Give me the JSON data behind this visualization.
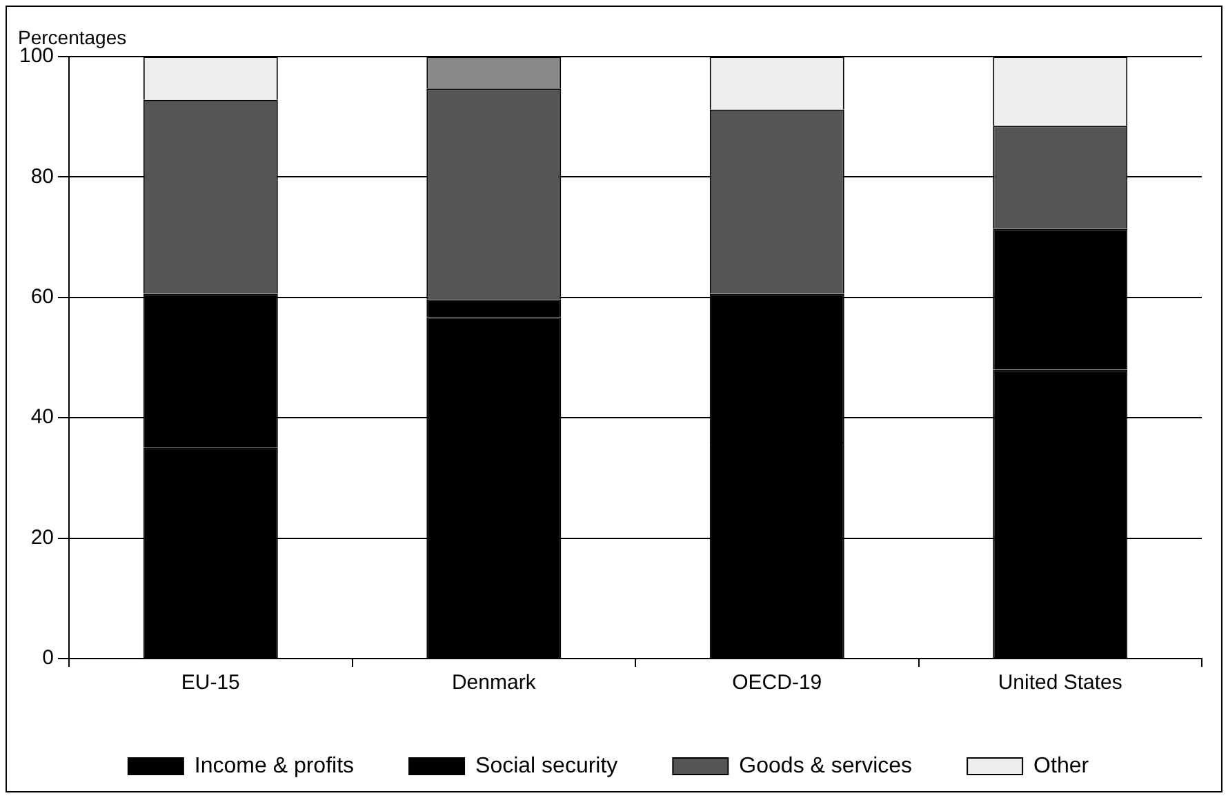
{
  "chart_data": {
    "type": "bar",
    "stacked": true,
    "ylabel": "Percentages",
    "categories": [
      "EU-15",
      "Denmark",
      "OECD-19",
      "United States"
    ],
    "series": [
      {
        "name": "Income & profits",
        "color": "#000000",
        "values": [
          35,
          56.7,
          36,
          48
        ]
      },
      {
        "name": "Social security",
        "color": "#000000",
        "values": [
          25.6,
          3,
          24.6,
          23.4
        ]
      },
      {
        "name": "Goods & services",
        "color": "#555555",
        "values": [
          32.2,
          35,
          30.6,
          17.1
        ]
      },
      {
        "name": "Other",
        "color": "#eeeeee",
        "colors": [
          "#eeeeee",
          "#888888",
          "#eeeeee",
          "#eeeeee"
        ],
        "values": [
          7.2,
          5.3,
          8.8,
          11.5
        ]
      }
    ],
    "ylim": [
      0,
      100
    ],
    "yticks": [
      0,
      20,
      40,
      60,
      80,
      100
    ],
    "grid": "y",
    "legend": "bottom"
  }
}
